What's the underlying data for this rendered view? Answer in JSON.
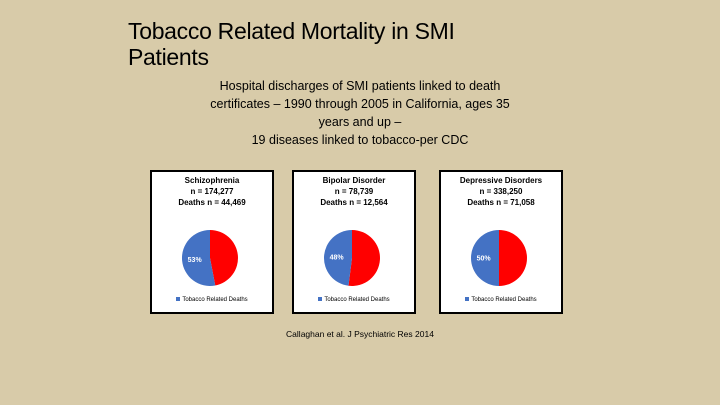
{
  "slide": {
    "title_line1": "Tobacco Related Mortality in SMI",
    "title_line2": "Patients",
    "subtitle_lines": [
      "Hospital discharges of SMI patients linked to death",
      "certificates – 1990 through 2005 in California, ages 35",
      "years and up –",
      "19 diseases linked to tobacco-per CDC"
    ],
    "citation": "Callaghan et al. J Psychiatric Res 2014"
  },
  "colors": {
    "background": "#d8cba9",
    "tobacco": "#4472c4",
    "other": "#ff0000"
  },
  "chart_data": [
    {
      "type": "pie",
      "title": "Schizophrenia",
      "header_lines": [
        "Schizophrenia",
        "n = 174,277",
        "Deaths n = 44,469"
      ],
      "slices": [
        {
          "label": "Tobacco Related Deaths",
          "value": 53
        },
        {
          "label": "",
          "value": 47
        }
      ],
      "data_label": "53%",
      "legend": [
        "Tobacco Related Deaths"
      ],
      "legend_position": "bottom"
    },
    {
      "type": "pie",
      "title": "Bipolar Disorder",
      "header_lines": [
        "Bipolar Disorder",
        "n = 78,739",
        "Deaths n = 12,564"
      ],
      "slices": [
        {
          "label": "Tobacco Related Deaths",
          "value": 48
        },
        {
          "label": "",
          "value": 52
        }
      ],
      "data_label": "48%",
      "legend": [
        "Tobacco Related Deaths"
      ],
      "legend_position": "bottom"
    },
    {
      "type": "pie",
      "title": "Depressive Disorders",
      "header_lines": [
        "Depressive Disorders",
        "n = 338,250",
        "Deaths n = 71,058"
      ],
      "slices": [
        {
          "label": "Tobacco Related Deaths",
          "value": 50
        },
        {
          "label": "",
          "value": 50
        }
      ],
      "data_label": "50%",
      "legend": [
        "Tobacco Related Deaths"
      ],
      "legend_position": "bottom"
    }
  ]
}
